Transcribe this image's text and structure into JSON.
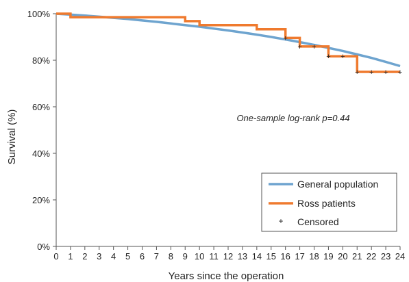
{
  "chart_data": {
    "type": "line",
    "title": "",
    "xlabel": "Years since the operation",
    "ylabel": "Survival (%)",
    "xlim": [
      0,
      24
    ],
    "ylim": [
      0,
      100
    ],
    "y_unit": "%",
    "x_ticks": [
      0,
      1,
      2,
      3,
      4,
      5,
      6,
      7,
      8,
      9,
      10,
      11,
      12,
      13,
      14,
      15,
      16,
      17,
      18,
      19,
      20,
      21,
      22,
      23,
      24
    ],
    "x_tick_labels": [
      "0",
      "1",
      "2",
      "3",
      "4",
      "5",
      "6",
      "7",
      "8",
      "9",
      "10",
      "11",
      "12",
      "13",
      "14",
      "15",
      "16",
      "17",
      "18",
      "19",
      "20",
      "21",
      "22",
      "23",
      "24"
    ],
    "y_ticks": [
      0,
      20,
      40,
      60,
      80,
      100
    ],
    "y_tick_labels": [
      "0%",
      "20%",
      "40%",
      "60%",
      "80%",
      "100%"
    ],
    "annotation": "One-sample log-rank p=0.44",
    "grid": false,
    "legend_position": "bottom-right",
    "series": [
      {
        "name": "General population",
        "kind": "line",
        "color": "#6ea4cf",
        "x": [
          0,
          1,
          2,
          3,
          4,
          5,
          6,
          7,
          8,
          9,
          10,
          11,
          12,
          13,
          14,
          15,
          16,
          17,
          18,
          19,
          20,
          21,
          22,
          23,
          24
        ],
        "y": [
          100,
          99.6,
          99.2,
          98.7,
          98.2,
          97.7,
          97.1,
          96.5,
          95.8,
          95.1,
          94.4,
          93.6,
          92.8,
          91.9,
          91.0,
          90.0,
          88.9,
          87.8,
          86.6,
          85.3,
          84.0,
          82.5,
          81.0,
          79.3,
          77.5
        ]
      },
      {
        "name": "Ross patients",
        "kind": "step",
        "color": "#ef7a2e",
        "x": [
          0,
          1,
          9,
          10,
          14,
          16,
          17,
          19,
          21,
          24
        ],
        "y": [
          100,
          98.5,
          96.8,
          95.1,
          93.3,
          89.6,
          85.9,
          81.7,
          75.0,
          75.0
        ]
      },
      {
        "name": "Censored",
        "kind": "marker",
        "color": "#222222",
        "x": [
          16,
          17,
          18,
          19,
          20,
          21,
          22,
          23,
          24
        ],
        "y": [
          89.6,
          85.9,
          85.9,
          81.7,
          81.7,
          75.0,
          75.0,
          75.0,
          75.0
        ]
      }
    ]
  }
}
